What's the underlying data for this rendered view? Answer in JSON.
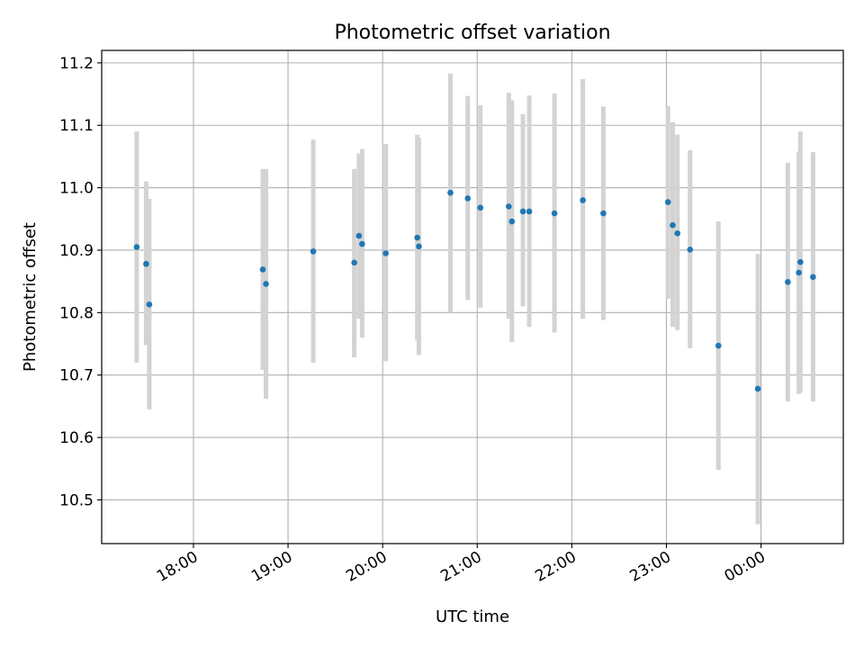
{
  "chart_data": {
    "type": "scatter",
    "title": "Photometric offset variation",
    "xlabel": "UTC time",
    "ylabel": "Photometric offset",
    "x_tick_labels": [
      "18:00",
      "19:00",
      "20:00",
      "21:00",
      "22:00",
      "23:00",
      "00:00"
    ],
    "x_tick_hours": [
      18,
      19,
      20,
      21,
      22,
      23,
      24
    ],
    "xlim_hours": [
      17.03,
      24.87
    ],
    "y_ticks": [
      10.5,
      10.6,
      10.7,
      10.8,
      10.9,
      11.0,
      11.1,
      11.2
    ],
    "y_tick_labels": [
      "10.5",
      "10.6",
      "10.7",
      "10.8",
      "10.9",
      "11.0",
      "11.1",
      "11.2"
    ],
    "ylim": [
      10.43,
      11.22
    ],
    "grid": true,
    "marker_color": "#1f77b4",
    "errorbar_color": "#d3d3d3",
    "points": [
      {
        "t": "17:24",
        "y": 10.905,
        "lo": 10.72,
        "hi": 11.09
      },
      {
        "t": "17:30",
        "y": 10.878,
        "lo": 10.748,
        "hi": 11.01
      },
      {
        "t": "17:32",
        "y": 10.813,
        "lo": 10.645,
        "hi": 10.982
      },
      {
        "t": "18:44",
        "y": 10.869,
        "lo": 10.708,
        "hi": 11.03
      },
      {
        "t": "18:46",
        "y": 10.846,
        "lo": 10.662,
        "hi": 11.03
      },
      {
        "t": "19:16",
        "y": 10.898,
        "lo": 10.72,
        "hi": 11.077
      },
      {
        "t": "19:42",
        "y": 10.88,
        "lo": 10.728,
        "hi": 11.03
      },
      {
        "t": "19:45",
        "y": 10.923,
        "lo": 10.79,
        "hi": 11.055
      },
      {
        "t": "19:47",
        "y": 10.91,
        "lo": 10.76,
        "hi": 11.062
      },
      {
        "t": "20:02",
        "y": 10.895,
        "lo": 10.722,
        "hi": 11.07
      },
      {
        "t": "20:22",
        "y": 10.92,
        "lo": 10.755,
        "hi": 11.085
      },
      {
        "t": "20:23",
        "y": 10.906,
        "lo": 10.732,
        "hi": 11.08
      },
      {
        "t": "20:43",
        "y": 10.992,
        "lo": 10.8,
        "hi": 11.183
      },
      {
        "t": "20:54",
        "y": 10.983,
        "lo": 10.82,
        "hi": 11.147
      },
      {
        "t": "21:02",
        "y": 10.968,
        "lo": 10.808,
        "hi": 11.132
      },
      {
        "t": "21:20",
        "y": 10.97,
        "lo": 10.79,
        "hi": 11.152
      },
      {
        "t": "21:22",
        "y": 10.946,
        "lo": 10.753,
        "hi": 11.14
      },
      {
        "t": "21:29",
        "y": 10.962,
        "lo": 10.81,
        "hi": 11.118
      },
      {
        "t": "21:33",
        "y": 10.962,
        "lo": 10.777,
        "hi": 11.148
      },
      {
        "t": "21:49",
        "y": 10.959,
        "lo": 10.768,
        "hi": 11.151
      },
      {
        "t": "22:07",
        "y": 10.98,
        "lo": 10.79,
        "hi": 11.174
      },
      {
        "t": "22:20",
        "y": 10.959,
        "lo": 10.788,
        "hi": 11.13
      },
      {
        "t": "23:01",
        "y": 10.977,
        "lo": 10.822,
        "hi": 11.131
      },
      {
        "t": "23:04",
        "y": 10.94,
        "lo": 10.777,
        "hi": 11.105
      },
      {
        "t": "23:07",
        "y": 10.927,
        "lo": 10.772,
        "hi": 11.085
      },
      {
        "t": "23:15",
        "y": 10.901,
        "lo": 10.743,
        "hi": 11.06
      },
      {
        "t": "23:33",
        "y": 10.747,
        "lo": 10.548,
        "hi": 10.946
      },
      {
        "t": "23:58",
        "y": 10.678,
        "lo": 10.461,
        "hi": 10.894
      },
      {
        "t": "00:17",
        "y": 10.849,
        "lo": 10.658,
        "hi": 11.04
      },
      {
        "t": "00:24",
        "y": 10.864,
        "lo": 10.67,
        "hi": 11.058
      },
      {
        "t": "00:25",
        "y": 10.881,
        "lo": 10.672,
        "hi": 11.09
      },
      {
        "t": "00:33",
        "y": 10.857,
        "lo": 10.658,
        "hi": 11.057
      }
    ]
  }
}
